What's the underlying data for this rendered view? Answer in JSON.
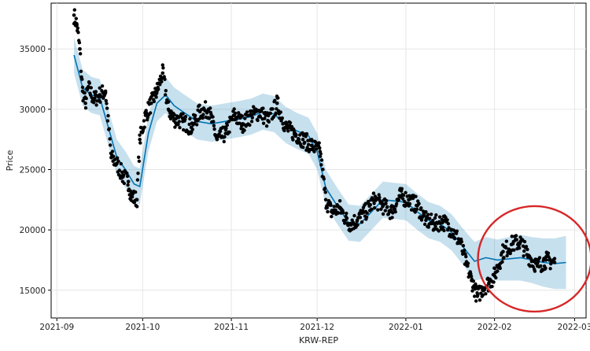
{
  "chart_data": {
    "type": "scatter",
    "title": "",
    "xlabel": "KRW-REP",
    "ylabel": "Price",
    "x_is_date": true,
    "xlim": [
      "2021-08-30",
      "2022-03-05"
    ],
    "ylim": [
      12700,
      38800
    ],
    "x_ticks": [
      "2021-09",
      "2021-10",
      "2021-11",
      "2021-12",
      "2022-01",
      "2022-02",
      "2022-03"
    ],
    "x_tick_dates": [
      "2021-09-01",
      "2021-10-01",
      "2021-11-01",
      "2021-12-01",
      "2022-01-01",
      "2022-02-01",
      "2022-03-01"
    ],
    "y_ticks": [
      15000,
      20000,
      25000,
      30000,
      35000
    ],
    "grid": true,
    "colors": {
      "points": "#000000",
      "forecast_line": "#0072B2",
      "interval_band": "#0072B2",
      "highlight_circle": "#D62728"
    },
    "series": [
      {
        "kind": "forecast",
        "x": [
          "2021-09-07",
          "2021-09-10",
          "2021-09-13",
          "2021-09-16",
          "2021-09-19",
          "2021-09-22",
          "2021-09-25",
          "2021-09-28",
          "2021-09-30",
          "2021-10-03",
          "2021-10-06",
          "2021-10-09",
          "2021-10-12",
          "2021-10-15",
          "2021-10-20",
          "2021-10-25",
          "2021-10-30",
          "2021-11-04",
          "2021-11-08",
          "2021-11-12",
          "2021-11-16",
          "2021-11-20",
          "2021-11-24",
          "2021-11-28",
          "2021-12-01",
          "2021-12-04",
          "2021-12-08",
          "2021-12-12",
          "2021-12-16",
          "2021-12-20",
          "2021-12-24",
          "2021-12-28",
          "2022-01-01",
          "2022-01-05",
          "2022-01-09",
          "2022-01-13",
          "2022-01-17",
          "2022-01-21",
          "2022-01-25",
          "2022-01-29",
          "2022-02-02",
          "2022-02-06",
          "2022-02-10",
          "2022-02-14",
          "2022-02-18",
          "2022-02-22",
          "2022-02-26"
        ],
        "values": [
          34500,
          31800,
          31200,
          31000,
          28500,
          26000,
          25000,
          23800,
          23600,
          28000,
          30500,
          31200,
          30300,
          29800,
          29000,
          28800,
          29000,
          29200,
          29400,
          29800,
          29600,
          28700,
          28200,
          27800,
          26500,
          23500,
          22000,
          20600,
          20500,
          21500,
          22500,
          22400,
          22300,
          21500,
          20800,
          20500,
          19800,
          18600,
          17400,
          17700,
          17500,
          17600,
          17700,
          17500,
          17300,
          17200,
          17300
        ],
        "lower": [
          33000,
          30300,
          29700,
          29500,
          27000,
          24500,
          23500,
          22300,
          22100,
          26500,
          29000,
          29700,
          28800,
          28300,
          27500,
          27300,
          27500,
          27700,
          27900,
          28300,
          28100,
          27200,
          26700,
          26300,
          25000,
          22000,
          20500,
          19100,
          19000,
          20000,
          21000,
          20900,
          20800,
          20000,
          19300,
          19000,
          18300,
          17100,
          15800,
          16000,
          15800,
          15800,
          15800,
          15600,
          15300,
          15100,
          15100
        ],
        "upper": [
          36000,
          33300,
          32700,
          32500,
          30000,
          27500,
          26500,
          25300,
          25100,
          29500,
          32000,
          32700,
          31800,
          31300,
          30500,
          30300,
          30500,
          30700,
          30900,
          31300,
          31100,
          30200,
          29700,
          29300,
          28000,
          25000,
          23500,
          22100,
          22000,
          23000,
          24000,
          23900,
          23800,
          23000,
          22300,
          22000,
          21300,
          20100,
          19000,
          19400,
          19200,
          19400,
          19600,
          19400,
          19300,
          19300,
          19500
        ]
      },
      {
        "kind": "observed",
        "x": [
          "2021-09-07",
          "2021-09-08",
          "2021-09-09",
          "2021-09-10",
          "2021-09-11",
          "2021-09-12",
          "2021-09-14",
          "2021-09-16",
          "2021-09-18",
          "2021-09-20",
          "2021-09-22",
          "2021-09-24",
          "2021-09-26",
          "2021-09-27",
          "2021-09-29",
          "2021-09-30",
          "2021-10-02",
          "2021-10-04",
          "2021-10-06",
          "2021-10-08",
          "2021-10-10",
          "2021-10-12",
          "2021-10-15",
          "2021-10-18",
          "2021-10-21",
          "2021-10-24",
          "2021-10-27",
          "2021-10-30",
          "2021-11-02",
          "2021-11-05",
          "2021-11-08",
          "2021-11-11",
          "2021-11-14",
          "2021-11-17",
          "2021-11-20",
          "2021-11-23",
          "2021-11-26",
          "2021-11-29",
          "2021-12-02",
          "2021-12-04",
          "2021-12-06",
          "2021-12-09",
          "2021-12-12",
          "2021-12-15",
          "2021-12-18",
          "2021-12-21",
          "2021-12-24",
          "2021-12-27",
          "2021-12-30",
          "2022-01-02",
          "2022-01-05",
          "2022-01-08",
          "2022-01-11",
          "2022-01-14",
          "2022-01-17",
          "2022-01-20",
          "2022-01-22",
          "2022-01-24",
          "2022-01-26",
          "2022-01-28",
          "2022-01-30",
          "2022-02-01",
          "2022-02-04",
          "2022-02-07",
          "2022-02-10",
          "2022-02-13",
          "2022-02-16",
          "2022-02-19",
          "2022-02-22"
        ],
        "values": [
          37800,
          37000,
          35000,
          31500,
          30500,
          31800,
          30800,
          31200,
          31500,
          26000,
          25500,
          24500,
          24000,
          22800,
          22500,
          27500,
          29500,
          30500,
          31500,
          33000,
          30000,
          29200,
          29000,
          28500,
          29800,
          30000,
          27500,
          28000,
          29500,
          28800,
          29500,
          29800,
          29000,
          30500,
          28500,
          28000,
          27500,
          27000,
          26500,
          22500,
          21500,
          21800,
          20500,
          20800,
          21500,
          22500,
          22000,
          21500,
          22800,
          22500,
          22000,
          20800,
          20500,
          20700,
          20000,
          19000,
          17200,
          15800,
          14500,
          15200,
          15600,
          16200,
          18200,
          18800,
          19000,
          17800,
          17000,
          17500,
          17300
        ]
      }
    ],
    "annotations": [
      {
        "kind": "ellipse",
        "center": [
          "2022-02-15",
          17600
        ],
        "color": "#D62728"
      }
    ]
  }
}
